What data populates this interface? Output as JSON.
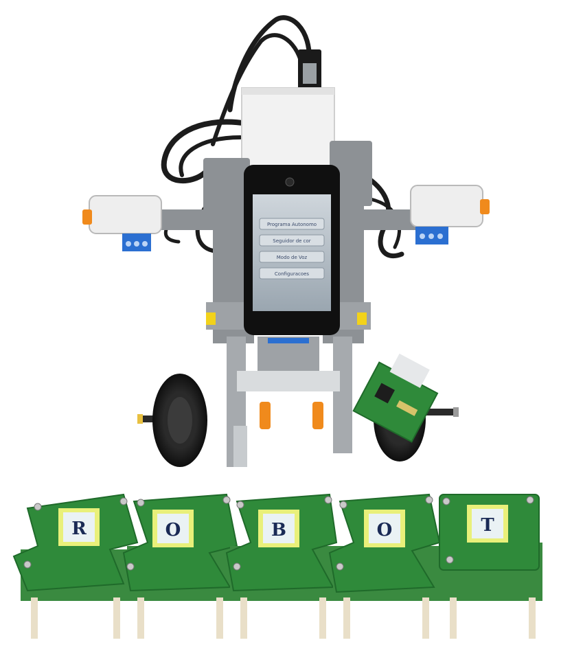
{
  "photo": {
    "robot": {
      "screen_menu": [
        "Programa Autonomo",
        "Seguidor de cor",
        "Modo de Voz",
        "Configuracoes"
      ]
    },
    "modules": {
      "letters": [
        "R",
        "O",
        "B",
        "O",
        "T"
      ],
      "colors": {
        "pcb": "#2f8a3a",
        "pcb_dark": "#1f6a2a",
        "label_border": "#e9f07a",
        "label_fill": "#eaf2f4",
        "letter": "#1a2a55"
      }
    },
    "colors": {
      "lego_gray": "#8d9195",
      "lego_light": "#c7cbce",
      "cable": "#1c1c1c",
      "tire": "#232323",
      "phone": "#101010",
      "screen": "#b9c4cc",
      "accent_orange": "#f08a1c",
      "accent_blue": "#2b6fd1"
    }
  }
}
